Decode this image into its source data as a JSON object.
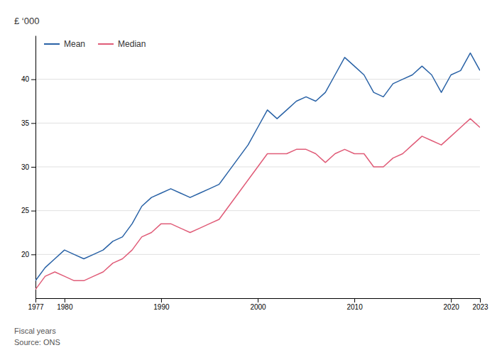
{
  "chart_data": {
    "type": "line",
    "y_label": "£ ‘000",
    "annotations": [
      "Fiscal years",
      "Source: ONS"
    ],
    "x": [
      1977,
      1978,
      1979,
      1980,
      1981,
      1982,
      1983,
      1984,
      1985,
      1986,
      1987,
      1988,
      1989,
      1990,
      1991,
      1992,
      1993,
      1994,
      1995,
      1996,
      1997,
      1998,
      1999,
      2000,
      2001,
      2002,
      2003,
      2004,
      2005,
      2006,
      2007,
      2008,
      2009,
      2010,
      2011,
      2012,
      2013,
      2014,
      2015,
      2016,
      2017,
      2018,
      2019,
      2020,
      2021,
      2022,
      2023
    ],
    "series": [
      {
        "name": "Mean",
        "color": "#2962a6",
        "values": [
          17.0,
          18.5,
          19.5,
          20.5,
          20.0,
          19.5,
          20.0,
          20.5,
          21.5,
          22.0,
          23.5,
          25.5,
          26.5,
          27.0,
          27.5,
          27.0,
          26.5,
          27.0,
          27.5,
          28.0,
          29.5,
          31.0,
          32.5,
          34.5,
          36.5,
          35.5,
          36.5,
          37.5,
          38.0,
          37.5,
          38.5,
          40.5,
          42.5,
          41.5,
          40.5,
          38.5,
          38.0,
          39.5,
          40.0,
          40.5,
          41.5,
          40.5,
          38.5,
          40.5,
          41.0,
          43.0,
          41.0
        ]
      },
      {
        "name": "Median",
        "color": "#e05c78",
        "values": [
          16.0,
          17.5,
          18.0,
          17.5,
          17.0,
          17.0,
          17.5,
          18.0,
          19.0,
          19.5,
          20.5,
          22.0,
          22.5,
          23.5,
          23.5,
          23.0,
          22.5,
          23.0,
          23.5,
          24.0,
          25.5,
          27.0,
          28.5,
          30.0,
          31.5,
          31.5,
          31.5,
          32.0,
          32.0,
          31.5,
          30.5,
          31.5,
          32.0,
          31.5,
          31.5,
          30.0,
          30.0,
          31.0,
          31.5,
          32.5,
          33.5,
          33.0,
          32.5,
          33.5,
          34.5,
          35.5,
          34.5
        ]
      }
    ],
    "xlim": [
      1977,
      2023
    ],
    "xticks": [
      1977,
      1980,
      1990,
      2000,
      2010,
      2020,
      2023
    ],
    "ylim": [
      15,
      45
    ],
    "yticks": [
      20,
      25,
      30,
      35,
      40
    ],
    "grid": true,
    "legend": "upper-left"
  }
}
